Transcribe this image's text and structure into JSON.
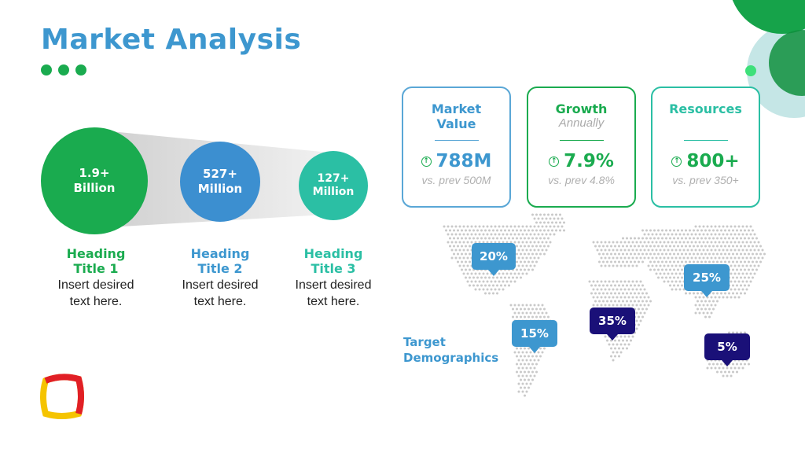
{
  "title": "Market Analysis",
  "colors": {
    "title_blue": "#3d97cf",
    "green": "#1aab4f",
    "blue": "#3c8fd0",
    "teal": "#2bbfa4",
    "navy": "#1a1078",
    "pin_blue": "#3d97cf"
  },
  "stats": [
    {
      "value": "1.9+\nBillion",
      "heading": "Heading\nTitle 1",
      "text": "Insert desired\ntext here."
    },
    {
      "value": "527+\nMillion",
      "heading": "Heading\nTitle 2",
      "text": "Insert desired\ntext here."
    },
    {
      "value": "127+\nMillion",
      "heading": "Heading\nTitle 3",
      "text": "Insert desired\ntext here."
    }
  ],
  "cards": [
    {
      "title": "Market\nValue",
      "subtitle": "",
      "value": "788M",
      "prev": "vs. prev 500M",
      "icon": "arrow-up-circle-icon"
    },
    {
      "title": "Growth",
      "subtitle": "Annually",
      "value": "7.9%",
      "prev": "vs. prev 4.8%",
      "icon": "arrow-up-circle-icon"
    },
    {
      "title": "Resources",
      "subtitle": "",
      "value": "800+",
      "prev": "vs. prev 350+",
      "icon": "arrow-up-circle-icon"
    }
  ],
  "map": {
    "label": "Target\nDemographics",
    "pins": [
      {
        "value": "20%",
        "color": "#3d97cf"
      },
      {
        "value": "15%",
        "color": "#3d97cf"
      },
      {
        "value": "35%",
        "color": "#1a1078"
      },
      {
        "value": "25%",
        "color": "#3d97cf"
      },
      {
        "value": "5%",
        "color": "#1a1078"
      }
    ]
  }
}
